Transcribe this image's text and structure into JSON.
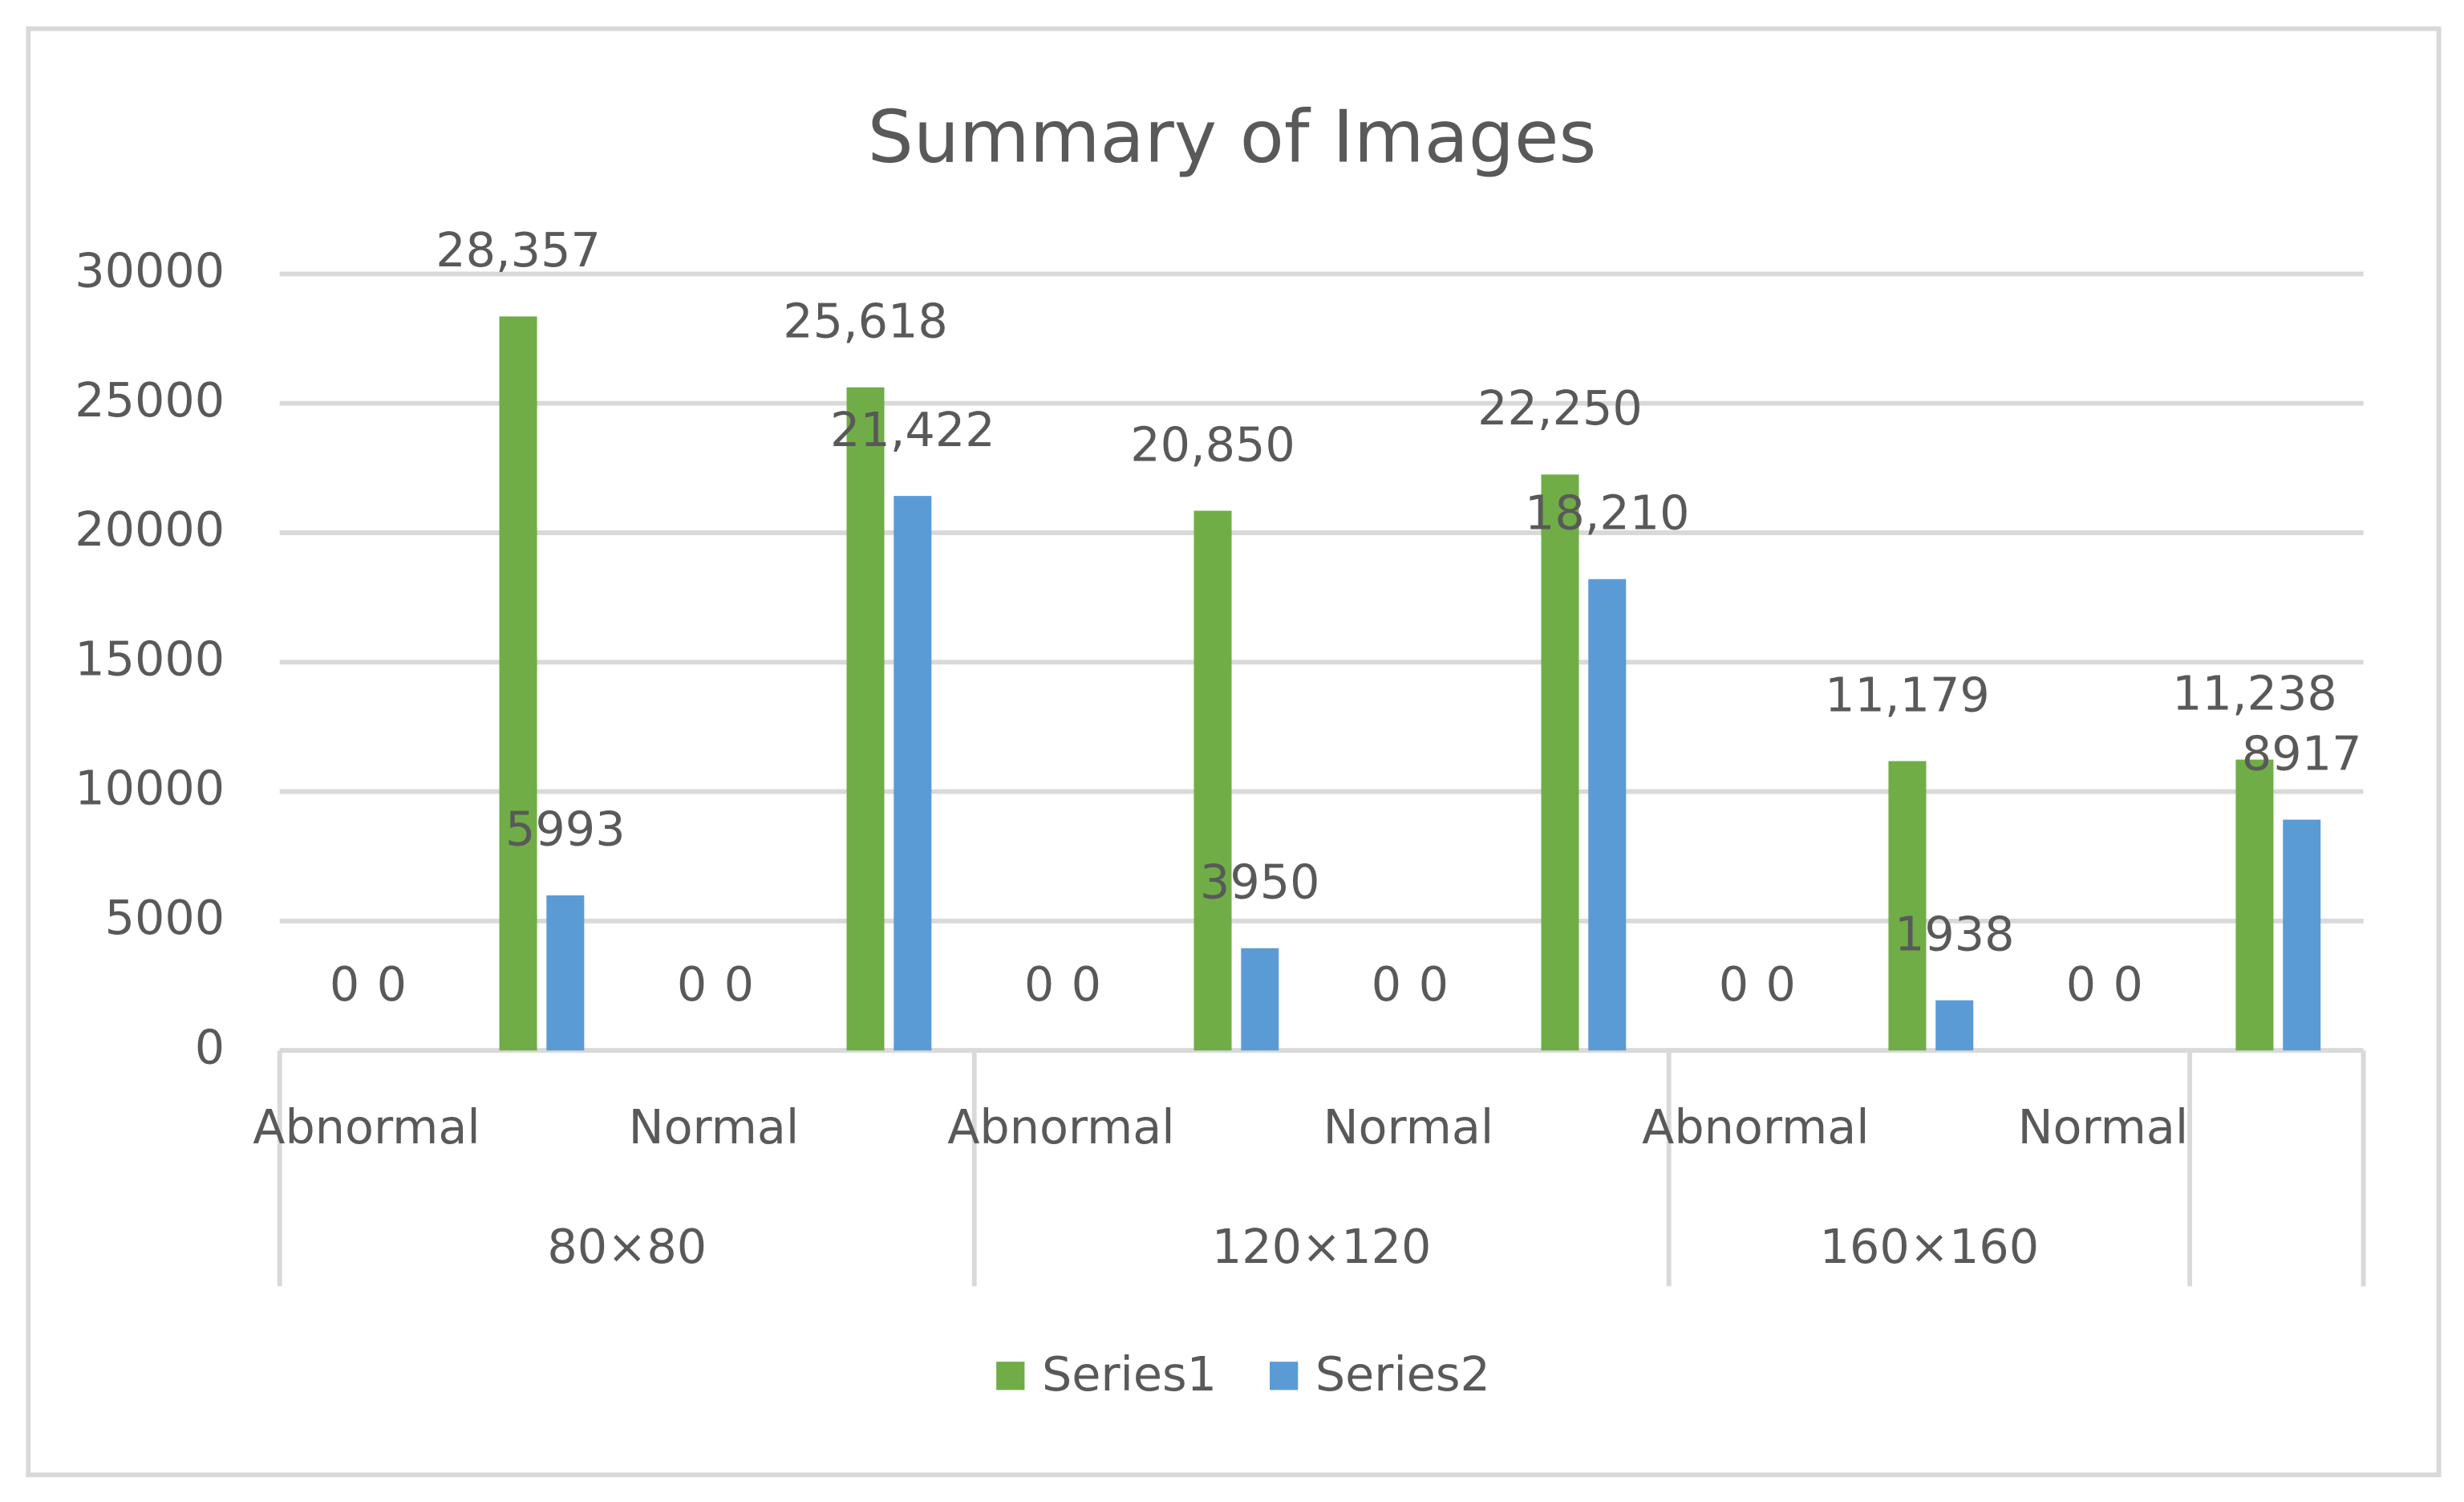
{
  "chart_data": {
    "type": "bar",
    "title": "Summary of Images",
    "categories": [
      "Abnormal",
      null,
      "Normal",
      null,
      "Abnormal",
      null,
      "Normal",
      null,
      "Abnormal",
      null,
      "Normal",
      null
    ],
    "group_categories": [
      "80×80",
      "80×80",
      "80×80",
      "80×80",
      "120×120",
      "120×120",
      "120×120",
      "120×120",
      "160×160",
      "160×160",
      "160×160",
      null
    ],
    "series": [
      {
        "name": "Series1",
        "color": "#70ad47",
        "values": [
          0,
          28357,
          0,
          25618,
          0,
          20850,
          0,
          22250,
          0,
          11179,
          0,
          11238
        ],
        "value_labels": [
          "0",
          "28,357",
          "0",
          "25,618",
          "0",
          "20,850",
          "0",
          "22,250",
          "0",
          "11,179",
          "0",
          "11,238"
        ]
      },
      {
        "name": "Series2",
        "color": "#5b9bd5",
        "values": [
          0,
          5993,
          0,
          21422,
          0,
          3950,
          0,
          18210,
          0,
          1938,
          0,
          8917
        ],
        "value_labels": [
          "0",
          "5993",
          "0",
          "21,422",
          "0",
          "3950",
          "0",
          "18,210",
          "0",
          "1938",
          "0",
          "8917"
        ]
      }
    ],
    "ylim": [
      0,
      30000
    ],
    "yticks": [
      0,
      5000,
      10000,
      15000,
      20000,
      25000,
      30000
    ],
    "grid": true,
    "legend": "bottom"
  }
}
